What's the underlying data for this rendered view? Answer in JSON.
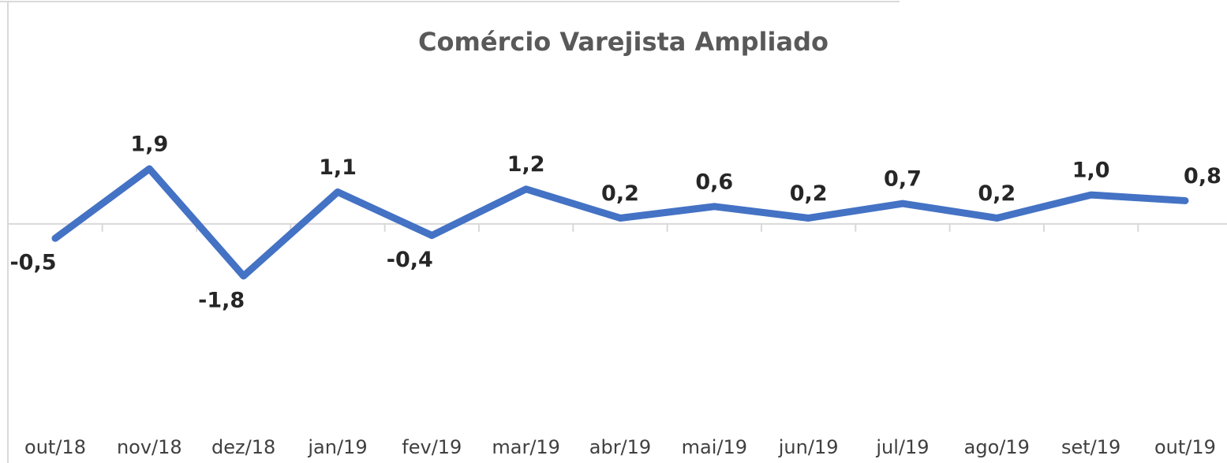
{
  "chart_data": {
    "type": "line",
    "title": "Comércio Varejista Ampliado",
    "categories": [
      "out/18",
      "nov/18",
      "dez/18",
      "jan/19",
      "fev/19",
      "mar/19",
      "abr/19",
      "mai/19",
      "jun/19",
      "jul/19",
      "ago/19",
      "set/19",
      "out/19"
    ],
    "values": [
      -0.5,
      1.9,
      -1.8,
      1.1,
      -0.4,
      1.2,
      0.2,
      0.6,
      0.2,
      0.7,
      0.2,
      1.0,
      0.8
    ],
    "value_labels": [
      "-0,5",
      "1,9",
      "-1,8",
      "1,1",
      "-0,4",
      "1,2",
      "0,2",
      "0,6",
      "0,2",
      "0,7",
      "0,2",
      "1,0",
      "0,8"
    ],
    "color": "#4472c4",
    "ylim": [
      -3,
      2.5
    ]
  }
}
